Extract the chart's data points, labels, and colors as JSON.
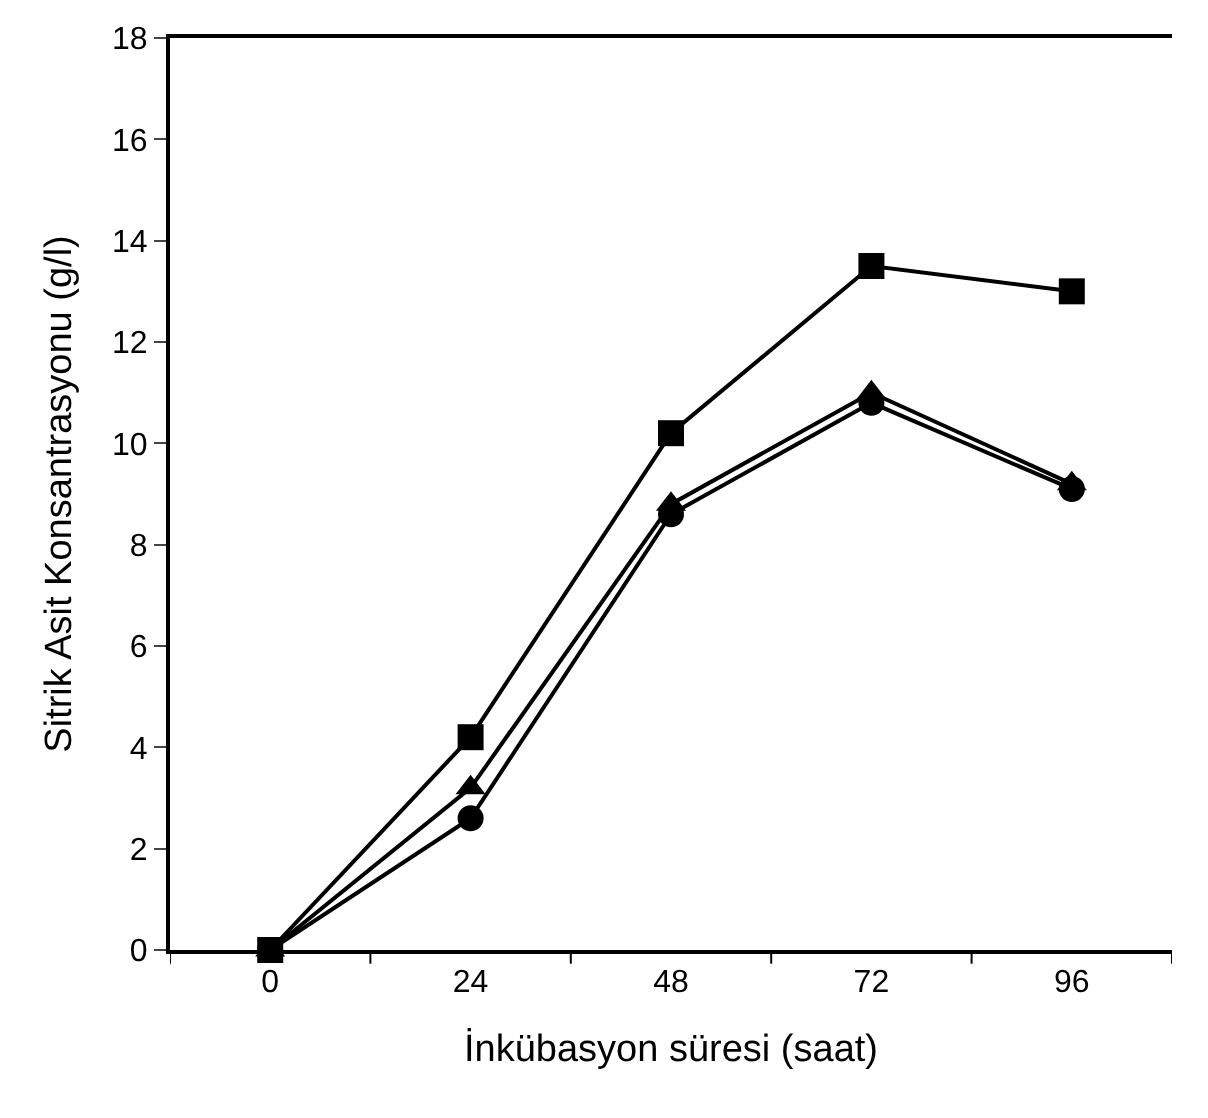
{
  "chart_data": {
    "type": "line",
    "xlabel": "İnkübasyon süresi (saat)",
    "ylabel": "Sitrik Asit Konsantrasyonu (g/l)",
    "categories": [
      "0",
      "24",
      "48",
      "72",
      "96"
    ],
    "series": [
      {
        "color": "#000000",
        "marker": "square",
        "values": [
          0,
          4.2,
          10.2,
          13.5,
          13.0
        ]
      },
      {
        "color": "#000000",
        "marker": "triangle",
        "values": [
          0,
          3.2,
          8.8,
          11.0,
          9.2
        ]
      },
      {
        "color": "#000000",
        "marker": "circle",
        "values": [
          0,
          2.6,
          8.6,
          10.8,
          9.1
        ]
      }
    ],
    "ylim": [
      0,
      18
    ],
    "yticks": [
      0,
      2,
      4,
      6,
      8,
      10,
      12,
      14,
      16,
      18
    ],
    "line_style": "solid"
  }
}
